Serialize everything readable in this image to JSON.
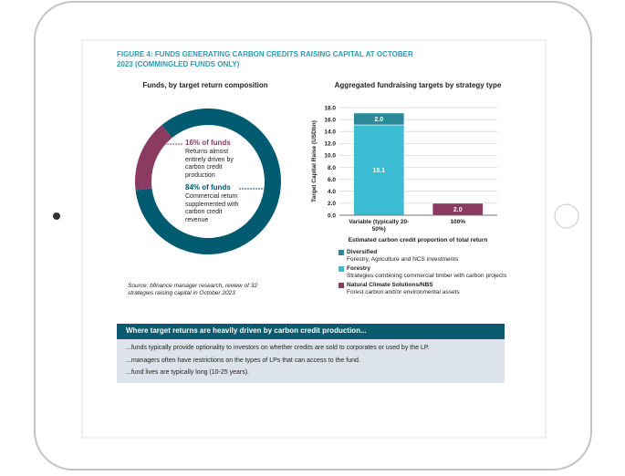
{
  "figure_title": "FIGURE 4: FUNDS GENERATING CARBON CREDITS RAISING CAPITAL AT OCTOBER 2023 (COMMINGLED FUNDS ONLY)",
  "chart_data": [
    {
      "type": "pie",
      "title": "Funds, by target return composition",
      "categories": [
        "Returns almost entirely driven by carbon credit production",
        "Commercial return supplemented with carbon credit revenue"
      ],
      "values": [
        16,
        84
      ],
      "value_labels": [
        "16% of funds",
        "84% of funds"
      ],
      "colors": [
        "#8b3a62",
        "#005a70"
      ],
      "source": "Source: bfinance manager research, review of 32 strategies raising capital in October 2023"
    },
    {
      "type": "bar",
      "stacked": true,
      "title": "Aggregated fundraising targets by strategy type",
      "y_label": "Target Capital Raise (USDbn)",
      "x_label": "Estimated carbon credit proportion of total return",
      "categories": [
        "Variable (typically 20-50%)",
        "100%"
      ],
      "series": [
        {
          "name": "Forestry",
          "description": "Strategies combining commercial timber with carbon projects",
          "color": "#3bbcd3",
          "values": [
            15.1,
            null
          ],
          "value_labels": [
            "15.1",
            null
          ]
        },
        {
          "name": "Diversified",
          "description": "Forestry, Agriculture and NCS investments",
          "color": "#2a8a9a",
          "values": [
            2.0,
            null
          ],
          "value_labels": [
            "2.0",
            null
          ]
        },
        {
          "name": "Natural Climate Solutions/NBS",
          "description": "Forest carbon and/or environmental assets",
          "color": "#8b3a62",
          "values": [
            null,
            2.0
          ],
          "value_labels": [
            null,
            "2.0"
          ]
        }
      ],
      "legend_order": [
        1,
        0,
        2
      ],
      "ylim": [
        0,
        18
      ],
      "yticks": [
        {
          "value": 0,
          "label": "0.0"
        },
        {
          "value": 2,
          "label": "2.0"
        },
        {
          "value": 4,
          "label": "4.0"
        },
        {
          "value": 6,
          "label": "6.0"
        },
        {
          "value": 8,
          "label": "8.0"
        },
        {
          "value": 10,
          "label": "10.0"
        },
        {
          "value": 12,
          "label": "12.0"
        },
        {
          "value": 14,
          "label": "14.0"
        },
        {
          "value": 16,
          "label": "16.0"
        },
        {
          "value": 18,
          "label": "18.0"
        }
      ],
      "grid": true
    }
  ],
  "callout": {
    "heading": "Where target returns are heavily driven by carbon credit production...",
    "lines": [
      "...funds typically provide optionality to investors on whether credits are sold to corporates or used by the LP.",
      "...managers often have restrictions on the types of LPs that can access to the fund.",
      "...fund lives are typically long (10-25 years)."
    ]
  }
}
